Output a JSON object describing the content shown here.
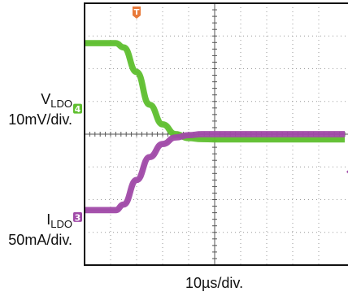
{
  "chart_data": {
    "type": "line",
    "title": "",
    "xlabel": "10µs/div.",
    "grid": true,
    "divisions": {
      "x": 10,
      "y": 8
    },
    "x_range_div": [
      0,
      10
    ],
    "y_range_div": [
      0,
      8
    ],
    "series": [
      {
        "channel": "4",
        "label_main": "V",
        "label_sub": "LDO",
        "scale": "10mV/div.",
        "color": "#5fbf2f",
        "trace_width_div": 0.19,
        "x": [
          0,
          1.2,
          1.5,
          2.0,
          2.5,
          3.0,
          3.5,
          4.0,
          4.5,
          5.0,
          6.0,
          10
        ],
        "y": [
          6.78,
          6.78,
          6.65,
          5.9,
          4.9,
          4.3,
          4.0,
          3.88,
          3.85,
          3.84,
          3.84,
          3.84
        ],
        "marker_level_div": 4.78
      },
      {
        "channel": "3",
        "label_main": "I",
        "label_sub": "LDO",
        "scale": "50mA/div.",
        "color": "#a04aa8",
        "trace_width_div": 0.19,
        "x": [
          0,
          1.2,
          1.5,
          2.0,
          2.5,
          3.0,
          3.5,
          4.0,
          4.5,
          5.0,
          6.0,
          10
        ],
        "y": [
          1.68,
          1.68,
          1.85,
          2.6,
          3.3,
          3.7,
          3.9,
          3.97,
          4.0,
          4.0,
          4.0,
          4.0
        ],
        "marker_level_div": 1.47
      }
    ],
    "trigger_marker": {
      "label": "T",
      "color": "#e87a3a",
      "x_div": 2.0
    },
    "trigger_level_div": 2.85
  },
  "labels": {
    "v_main": "V",
    "v_sub": "LDO",
    "v_scale": "10mV/div.",
    "i_main": "I",
    "i_sub": "LDO",
    "i_scale": "50mA/div.",
    "timebase": "10µs/div."
  }
}
